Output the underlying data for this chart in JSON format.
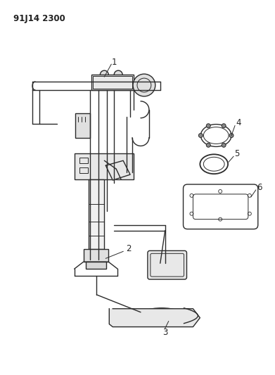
{
  "title_code": "91J14 2300",
  "background_color": "#ffffff",
  "line_color": "#2a2a2a",
  "figsize": [
    3.91,
    5.33
  ],
  "dpi": 100,
  "label_color": "#222222",
  "label_fontsize": 8.5
}
